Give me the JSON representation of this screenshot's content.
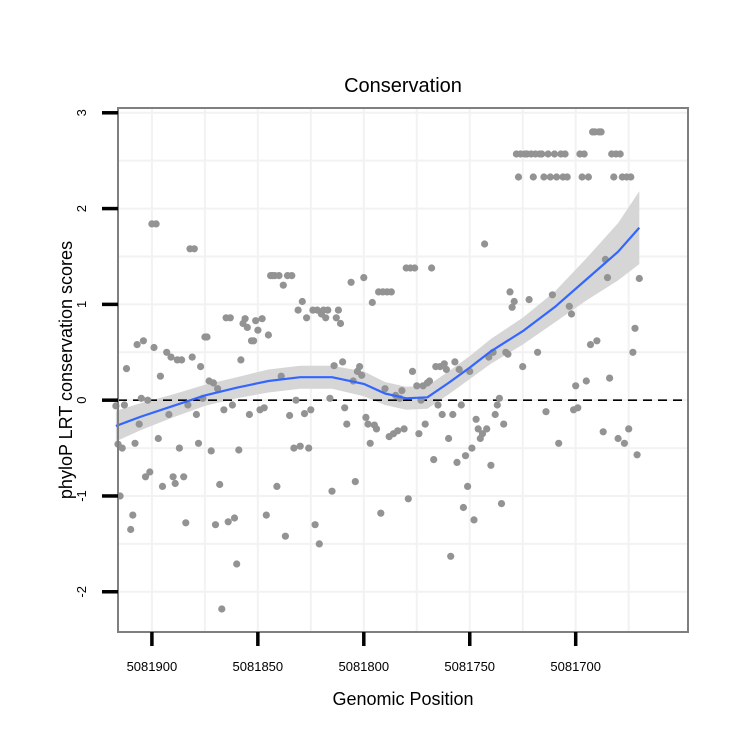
{
  "chart_data": {
    "type": "scatter",
    "title": "Conservation",
    "xlabel": "Genomic Position",
    "ylabel": "phyloP LRT conservation scores",
    "x_reversed": true,
    "xlim": [
      5081916,
      5081647
    ],
    "ylim": [
      -2.42,
      3.05
    ],
    "x_ticks": [
      5081900,
      5081850,
      5081800,
      5081750,
      5081700
    ],
    "x_tick_labels": [
      "5081900",
      "5081850",
      "5081800",
      "5081750",
      "5081700"
    ],
    "y_ticks": [
      -2,
      -1,
      0,
      1,
      2,
      3
    ],
    "y_tick_labels": [
      "-2",
      "-1",
      "0",
      "1",
      "2",
      "3"
    ],
    "reference_line": {
      "y": 0,
      "style": "dashed"
    },
    "colors": {
      "points": "#939393",
      "smooth_line": "#3366ff",
      "ribbon": "#d6d6d6",
      "grid": "#f2f2f2",
      "frame": "#7f7f7f",
      "reference": "#000000"
    },
    "series": [
      {
        "name": "scores",
        "points": [
          [
            5081917,
            -0.06
          ],
          [
            5081916,
            -0.46
          ],
          [
            5081915,
            -1.0
          ],
          [
            5081914,
            -0.5
          ],
          [
            5081913,
            -0.05
          ],
          [
            5081912,
            0.33
          ],
          [
            5081910,
            -1.35
          ],
          [
            5081909,
            -1.2
          ],
          [
            5081908,
            -0.45
          ],
          [
            5081907,
            0.58
          ],
          [
            5081906,
            -0.25
          ],
          [
            5081905,
            0.02
          ],
          [
            5081904,
            0.62
          ],
          [
            5081903,
            -0.8
          ],
          [
            5081902,
            0.0
          ],
          [
            5081901,
            -0.75
          ],
          [
            5081900,
            1.84
          ],
          [
            5081899,
            0.55
          ],
          [
            5081898,
            1.84
          ],
          [
            5081897,
            -0.4
          ],
          [
            5081896,
            0.25
          ],
          [
            5081895,
            -0.9
          ],
          [
            5081893,
            0.5
          ],
          [
            5081892,
            -0.15
          ],
          [
            5081891,
            0.45
          ],
          [
            5081890,
            -0.8
          ],
          [
            5081889,
            -0.87
          ],
          [
            5081888,
            0.42
          ],
          [
            5081887,
            -0.5
          ],
          [
            5081886,
            0.42
          ],
          [
            5081885,
            -0.8
          ],
          [
            5081884,
            -1.28
          ],
          [
            5081883,
            -0.05
          ],
          [
            5081882,
            1.58
          ],
          [
            5081881,
            0.45
          ],
          [
            5081880,
            1.58
          ],
          [
            5081879,
            -0.15
          ],
          [
            5081878,
            -0.45
          ],
          [
            5081877,
            0.35
          ],
          [
            5081876,
            0.02
          ],
          [
            5081875,
            0.66
          ],
          [
            5081874,
            0.66
          ],
          [
            5081873,
            0.2
          ],
          [
            5081872,
            -0.53
          ],
          [
            5081871,
            0.18
          ],
          [
            5081870,
            -1.3
          ],
          [
            5081869,
            0.12
          ],
          [
            5081868,
            -0.88
          ],
          [
            5081867,
            -2.18
          ],
          [
            5081866,
            -0.1
          ],
          [
            5081865,
            0.86
          ],
          [
            5081864,
            -1.27
          ],
          [
            5081863,
            0.86
          ],
          [
            5081862,
            -0.05
          ],
          [
            5081861,
            -1.23
          ],
          [
            5081860,
            -1.71
          ],
          [
            5081859,
            -0.52
          ],
          [
            5081858,
            0.42
          ],
          [
            5081857,
            0.8
          ],
          [
            5081856,
            0.85
          ],
          [
            5081855,
            0.76
          ],
          [
            5081854,
            -0.15
          ],
          [
            5081853,
            0.62
          ],
          [
            5081852,
            0.62
          ],
          [
            5081851,
            0.83
          ],
          [
            5081850,
            0.73
          ],
          [
            5081849,
            -0.1
          ],
          [
            5081848,
            0.85
          ],
          [
            5081847,
            -0.08
          ],
          [
            5081846,
            -1.2
          ],
          [
            5081845,
            0.68
          ],
          [
            5081844,
            1.3
          ],
          [
            5081843,
            1.3
          ],
          [
            5081842,
            1.3
          ],
          [
            5081841,
            -0.9
          ],
          [
            5081840,
            1.3
          ],
          [
            5081839,
            0.25
          ],
          [
            5081838,
            1.2
          ],
          [
            5081837,
            -1.42
          ],
          [
            5081836,
            1.3
          ],
          [
            5081835,
            -0.16
          ],
          [
            5081834,
            1.3
          ],
          [
            5081833,
            -0.5
          ],
          [
            5081832,
            0.0
          ],
          [
            5081831,
            0.94
          ],
          [
            5081830,
            -0.48
          ],
          [
            5081829,
            1.03
          ],
          [
            5081828,
            -0.14
          ],
          [
            5081827,
            0.86
          ],
          [
            5081826,
            -0.5
          ],
          [
            5081825,
            -0.1
          ],
          [
            5081824,
            0.94
          ],
          [
            5081823,
            -1.3
          ],
          [
            5081822,
            0.94
          ],
          [
            5081821,
            -1.5
          ],
          [
            5081820,
            0.9
          ],
          [
            5081819,
            0.94
          ],
          [
            5081818,
            0.86
          ],
          [
            5081817,
            0.94
          ],
          [
            5081816,
            0.02
          ],
          [
            5081815,
            -0.95
          ],
          [
            5081814,
            0.36
          ],
          [
            5081813,
            0.86
          ],
          [
            5081812,
            0.94
          ],
          [
            5081811,
            0.8
          ],
          [
            5081810,
            0.4
          ],
          [
            5081809,
            -0.08
          ],
          [
            5081808,
            -0.25
          ],
          [
            5081806,
            1.23
          ],
          [
            5081805,
            0.2
          ],
          [
            5081804,
            -0.85
          ],
          [
            5081803,
            0.3
          ],
          [
            5081802,
            0.35
          ],
          [
            5081801,
            0.26
          ],
          [
            5081800,
            1.28
          ],
          [
            5081799,
            -0.18
          ],
          [
            5081798,
            -0.25
          ],
          [
            5081797,
            -0.45
          ],
          [
            5081796,
            1.02
          ],
          [
            5081795,
            -0.26
          ],
          [
            5081794,
            -0.3
          ],
          [
            5081793,
            1.13
          ],
          [
            5081792,
            -1.18
          ],
          [
            5081791,
            1.13
          ],
          [
            5081790,
            0.12
          ],
          [
            5081789,
            1.13
          ],
          [
            5081788,
            -0.38
          ],
          [
            5081787,
            1.13
          ],
          [
            5081786,
            -0.35
          ],
          [
            5081785,
            0.05
          ],
          [
            5081784,
            -0.32
          ],
          [
            5081783,
            0.02
          ],
          [
            5081782,
            0.1
          ],
          [
            5081781,
            -0.3
          ],
          [
            5081780,
            1.38
          ],
          [
            5081779,
            -1.03
          ],
          [
            5081778,
            1.38
          ],
          [
            5081777,
            0.3
          ],
          [
            5081776,
            1.38
          ],
          [
            5081775,
            0.15
          ],
          [
            5081774,
            -0.35
          ],
          [
            5081773,
            0.0
          ],
          [
            5081772,
            0.15
          ],
          [
            5081771,
            -0.25
          ],
          [
            5081770,
            0.18
          ],
          [
            5081769,
            0.2
          ],
          [
            5081768,
            1.38
          ],
          [
            5081767,
            -0.62
          ],
          [
            5081766,
            0.35
          ],
          [
            5081765,
            -0.05
          ],
          [
            5081764,
            0.35
          ],
          [
            5081763,
            -0.15
          ],
          [
            5081762,
            0.38
          ],
          [
            5081761,
            0.32
          ],
          [
            5081760,
            -0.4
          ],
          [
            5081759,
            -1.63
          ],
          [
            5081758,
            -0.15
          ],
          [
            5081757,
            0.4
          ],
          [
            5081756,
            -0.65
          ],
          [
            5081755,
            0.32
          ],
          [
            5081754,
            -0.05
          ],
          [
            5081753,
            -1.12
          ],
          [
            5081752,
            -0.58
          ],
          [
            5081751,
            -0.9
          ],
          [
            5081750,
            0.3
          ],
          [
            5081749,
            -0.5
          ],
          [
            5081748,
            -1.25
          ],
          [
            5081747,
            -0.2
          ],
          [
            5081746,
            -0.3
          ],
          [
            5081745,
            -0.4
          ],
          [
            5081744,
            -0.35
          ],
          [
            5081743,
            1.63
          ],
          [
            5081742,
            -0.3
          ],
          [
            5081741,
            0.45
          ],
          [
            5081740,
            -0.68
          ],
          [
            5081739,
            0.5
          ],
          [
            5081738,
            -0.15
          ],
          [
            5081737,
            -0.05
          ],
          [
            5081736,
            0.02
          ],
          [
            5081735,
            -1.08
          ],
          [
            5081734,
            -0.25
          ],
          [
            5081733,
            0.5
          ],
          [
            5081732,
            0.48
          ],
          [
            5081731,
            1.13
          ],
          [
            5081730,
            0.97
          ],
          [
            5081729,
            1.03
          ],
          [
            5081728,
            2.57
          ],
          [
            5081727,
            2.33
          ],
          [
            5081726,
            2.57
          ],
          [
            5081725,
            0.35
          ],
          [
            5081724,
            2.57
          ],
          [
            5081723,
            2.57
          ],
          [
            5081722,
            1.05
          ],
          [
            5081721,
            2.57
          ],
          [
            5081720,
            2.33
          ],
          [
            5081719,
            2.57
          ],
          [
            5081718,
            0.5
          ],
          [
            5081717,
            2.57
          ],
          [
            5081716,
            2.57
          ],
          [
            5081715,
            2.33
          ],
          [
            5081714,
            -0.12
          ],
          [
            5081713,
            2.57
          ],
          [
            5081712,
            2.33
          ],
          [
            5081711,
            1.1
          ],
          [
            5081710,
            2.57
          ],
          [
            5081709,
            2.33
          ],
          [
            5081708,
            -0.45
          ],
          [
            5081707,
            2.57
          ],
          [
            5081706,
            2.33
          ],
          [
            5081705,
            2.57
          ],
          [
            5081704,
            2.33
          ],
          [
            5081703,
            0.98
          ],
          [
            5081702,
            0.9
          ],
          [
            5081701,
            -0.1
          ],
          [
            5081700,
            0.15
          ],
          [
            5081699,
            -0.08
          ],
          [
            5081698,
            2.57
          ],
          [
            5081697,
            2.33
          ],
          [
            5081696,
            2.57
          ],
          [
            5081695,
            0.2
          ],
          [
            5081694,
            2.33
          ],
          [
            5081693,
            0.58
          ],
          [
            5081692,
            2.8
          ],
          [
            5081691,
            2.8
          ],
          [
            5081690,
            0.62
          ],
          [
            5081689,
            2.8
          ],
          [
            5081688,
            2.8
          ],
          [
            5081687,
            -0.33
          ],
          [
            5081686,
            1.47
          ],
          [
            5081685,
            1.28
          ],
          [
            5081684,
            0.23
          ],
          [
            5081683,
            2.57
          ],
          [
            5081682,
            2.33
          ],
          [
            5081681,
            2.57
          ],
          [
            5081680,
            -0.4
          ],
          [
            5081679,
            2.57
          ],
          [
            5081678,
            2.33
          ],
          [
            5081677,
            -0.45
          ],
          [
            5081676,
            2.33
          ],
          [
            5081675,
            -0.3
          ],
          [
            5081674,
            2.33
          ],
          [
            5081673,
            0.5
          ],
          [
            5081672,
            0.75
          ],
          [
            5081671,
            -0.57
          ],
          [
            5081670,
            1.27
          ]
        ]
      }
    ],
    "smooth_fit": {
      "method": "loess",
      "curve": [
        [
          5081917,
          -0.27
        ],
        [
          5081905,
          -0.17
        ],
        [
          5081890,
          -0.06
        ],
        [
          5081875,
          0.05
        ],
        [
          5081860,
          0.13
        ],
        [
          5081845,
          0.2
        ],
        [
          5081830,
          0.24
        ],
        [
          5081815,
          0.24
        ],
        [
          5081800,
          0.17
        ],
        [
          5081790,
          0.07
        ],
        [
          5081780,
          0.02
        ],
        [
          5081770,
          0.03
        ],
        [
          5081760,
          0.18
        ],
        [
          5081750,
          0.34
        ],
        [
          5081740,
          0.51
        ],
        [
          5081725,
          0.72
        ],
        [
          5081710,
          0.97
        ],
        [
          5081695,
          1.26
        ],
        [
          5081680,
          1.55
        ],
        [
          5081670,
          1.8
        ]
      ],
      "band_half_width": [
        [
          5081917,
          0.16
        ],
        [
          5081905,
          0.14
        ],
        [
          5081890,
          0.12
        ],
        [
          5081875,
          0.11
        ],
        [
          5081860,
          0.11
        ],
        [
          5081845,
          0.12
        ],
        [
          5081830,
          0.12
        ],
        [
          5081815,
          0.12
        ],
        [
          5081800,
          0.13
        ],
        [
          5081790,
          0.12
        ],
        [
          5081780,
          0.12
        ],
        [
          5081770,
          0.12
        ],
        [
          5081760,
          0.12
        ],
        [
          5081750,
          0.12
        ],
        [
          5081740,
          0.13
        ],
        [
          5081725,
          0.14
        ],
        [
          5081710,
          0.16
        ],
        [
          5081695,
          0.22
        ],
        [
          5081680,
          0.3
        ],
        [
          5081670,
          0.38
        ]
      ]
    }
  }
}
